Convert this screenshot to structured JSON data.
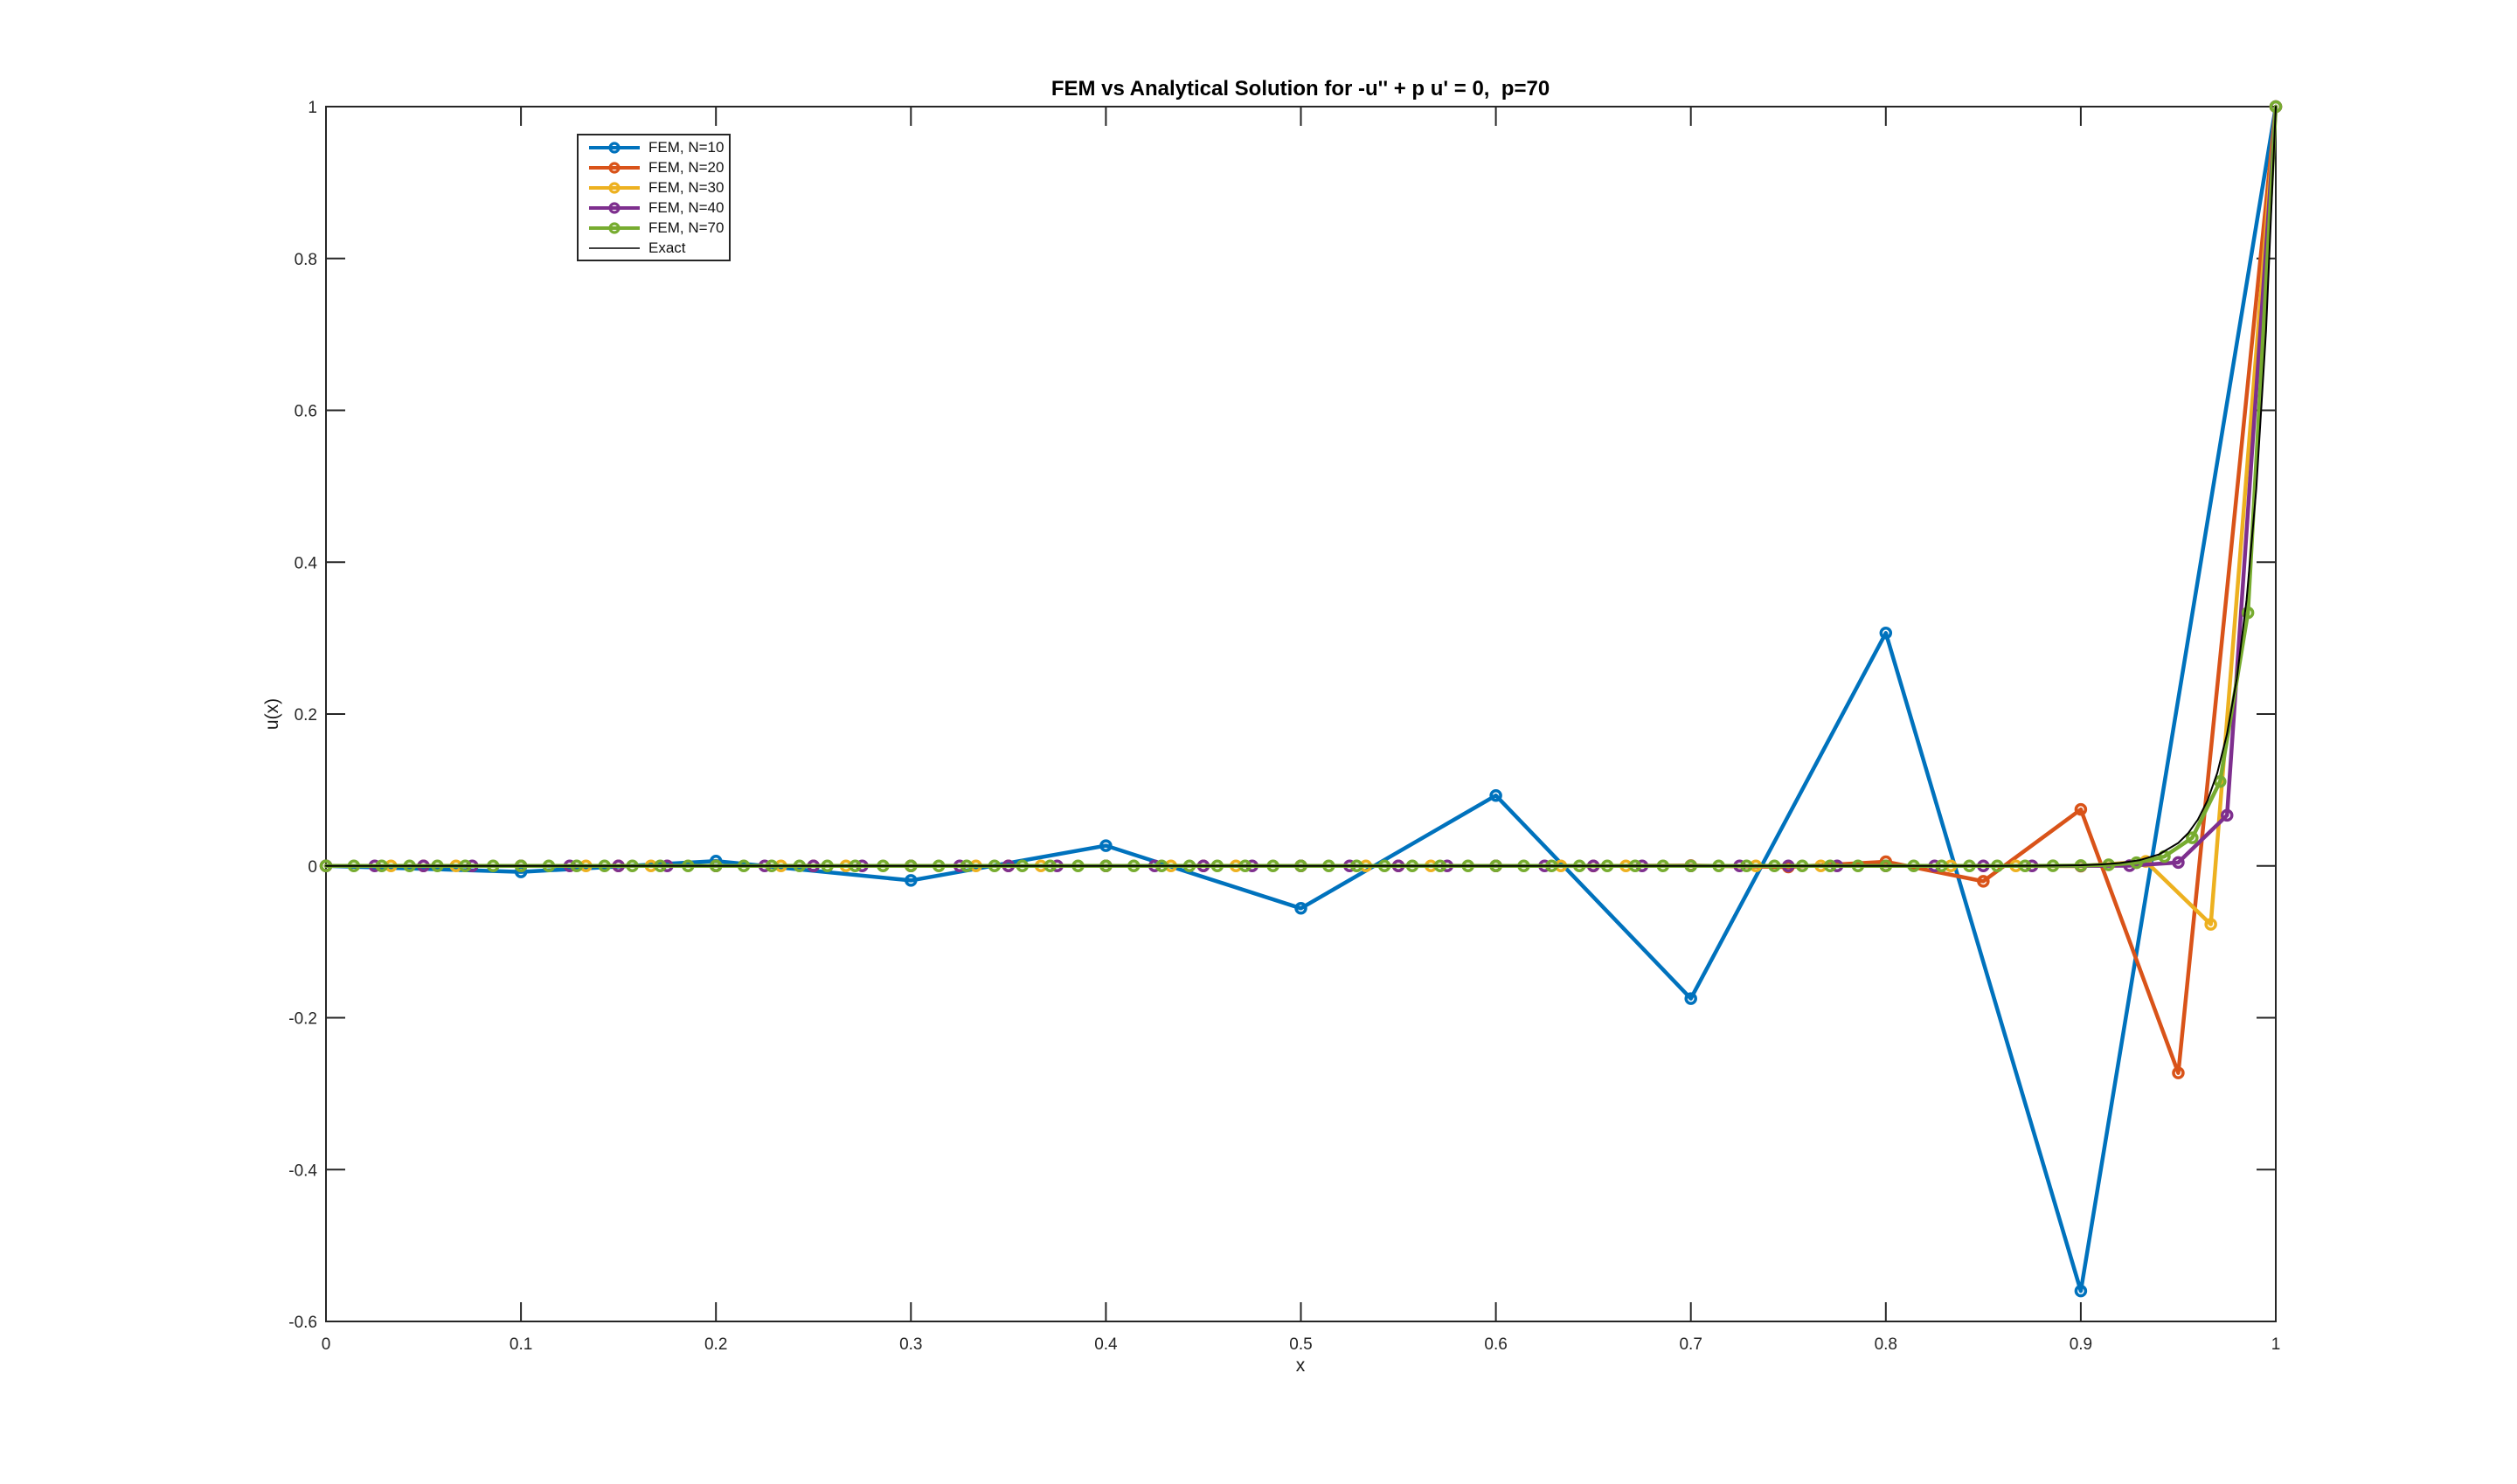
{
  "title": "FEM vs Analytical Solution for -u'' + p u' = 0,  p=70",
  "xlabel": "x",
  "ylabel": "u(x)",
  "chart_data": {
    "type": "line",
    "title": "FEM vs Analytical Solution for -u'' + p u' = 0,  p=70",
    "xlabel": "x",
    "ylabel": "u(x)",
    "xlim": [
      0,
      1
    ],
    "ylim": [
      -0.6,
      1
    ],
    "grid": false,
    "legend_position": "top-left-inside",
    "axis_color": "#262626",
    "background_color": "#ffffff",
    "xticks": [
      0,
      0.1,
      0.2,
      0.3,
      0.4,
      0.5,
      0.6,
      0.7,
      0.8,
      0.9,
      1
    ],
    "xtick_labels": [
      "0",
      "0.1",
      "0.2",
      "0.3",
      "0.4",
      "0.5",
      "0.6",
      "0.7",
      "0.8",
      "0.9",
      "1"
    ],
    "yticks": [
      -0.6,
      -0.4,
      -0.2,
      0,
      0.2,
      0.4,
      0.6,
      0.8,
      1
    ],
    "ytick_labels": [
      "-0.6",
      "-0.4",
      "-0.2",
      "0",
      "0.2",
      "0.4",
      "0.6",
      "0.8",
      "1"
    ],
    "series": [
      {
        "name": "FEM, N=10",
        "color": "#0072BD",
        "marker": "circle",
        "x": [
          0,
          0.1,
          0.2,
          0.3,
          0.4,
          0.5,
          0.6,
          0.7,
          0.8,
          0.9,
          1
        ],
        "values": [
          0,
          -0.007864,
          0.006291,
          -0.019189,
          0.026675,
          -0.05588,
          0.092719,
          -0.174758,
          0.3067,
          -0.559924,
          1
        ]
      },
      {
        "name": "FEM, N=20",
        "color": "#D95319",
        "marker": "circle",
        "x": [
          0,
          0.05,
          0.1,
          0.15,
          0.2,
          0.25,
          0.3,
          0.35,
          0.4,
          0.45,
          0.5,
          0.55,
          0.6,
          0.65,
          0.7,
          0.75,
          0.8,
          0.85,
          0.9,
          0.95,
          1
        ],
        "values": [
          0,
          0,
          0,
          0,
          0,
          0,
          0,
          0,
          0,
          -1e-06,
          2e-06,
          -8e-06,
          3.1e-05,
          -0.000112,
          0.000411,
          -0.001509,
          0.005532,
          -0.020285,
          0.07438,
          -0.272729,
          1
        ]
      },
      {
        "name": "FEM, N=30",
        "color": "#EDB120",
        "marker": "circle",
        "x": [
          0,
          0.033333,
          0.066667,
          0.1,
          0.133333,
          0.166667,
          0.2,
          0.233333,
          0.266667,
          0.3,
          0.333333,
          0.366667,
          0.4,
          0.433333,
          0.466667,
          0.5,
          0.533333,
          0.566667,
          0.6,
          0.633333,
          0.666667,
          0.7,
          0.733333,
          0.766667,
          0.8,
          0.833333,
          0.866667,
          0.9,
          0.933333,
          0.966667,
          1
        ],
        "values": [
          0,
          0,
          0,
          0,
          0,
          0,
          0,
          0,
          0,
          0,
          0,
          0,
          0,
          0,
          0,
          0,
          0,
          0,
          0,
          0,
          0,
          0,
          0,
          0,
          0,
          -3e-06,
          3.5e-05,
          -0.000455,
          0.005917,
          -0.076923,
          1
        ]
      },
      {
        "name": "FEM, N=40",
        "color": "#7E2F8E",
        "marker": "circle",
        "x": [
          0,
          0.025,
          0.05,
          0.075,
          0.1,
          0.125,
          0.15,
          0.175,
          0.2,
          0.225,
          0.25,
          0.275,
          0.3,
          0.325,
          0.35,
          0.375,
          0.4,
          0.425,
          0.45,
          0.475,
          0.5,
          0.525,
          0.55,
          0.575,
          0.6,
          0.625,
          0.65,
          0.675,
          0.7,
          0.725,
          0.75,
          0.775,
          0.8,
          0.825,
          0.85,
          0.875,
          0.9,
          0.925,
          0.95,
          0.975,
          1
        ],
        "values": [
          0,
          0,
          0,
          0,
          0,
          0,
          0,
          0,
          0,
          0,
          0,
          0,
          0,
          0,
          0,
          0,
          0,
          0,
          0,
          0,
          0,
          0,
          0,
          0,
          0,
          0,
          0,
          0,
          0,
          0,
          0,
          0,
          0,
          0,
          0,
          1e-06,
          2e-05,
          0.000296,
          0.004444,
          0.066667,
          1
        ]
      },
      {
        "name": "FEM, N=70",
        "color": "#77AC30",
        "marker": "circle",
        "x": [
          0,
          0.014286,
          0.028571,
          0.042857,
          0.057143,
          0.071429,
          0.085714,
          0.1,
          0.114286,
          0.128571,
          0.142857,
          0.157143,
          0.171429,
          0.185714,
          0.2,
          0.214286,
          0.228571,
          0.242857,
          0.257143,
          0.271429,
          0.285714,
          0.3,
          0.314286,
          0.328571,
          0.342857,
          0.357143,
          0.371429,
          0.385714,
          0.4,
          0.414286,
          0.428571,
          0.442857,
          0.457143,
          0.471429,
          0.485714,
          0.5,
          0.514286,
          0.528571,
          0.542857,
          0.557143,
          0.571429,
          0.585714,
          0.6,
          0.614286,
          0.628571,
          0.642857,
          0.657143,
          0.671429,
          0.685714,
          0.7,
          0.714286,
          0.728571,
          0.742857,
          0.757143,
          0.771429,
          0.785714,
          0.8,
          0.814286,
          0.828571,
          0.842857,
          0.857143,
          0.871429,
          0.885714,
          0.9,
          0.914286,
          0.928571,
          0.942857,
          0.957143,
          0.971429,
          0.985714,
          1
        ],
        "values": [
          0,
          0,
          0,
          0,
          0,
          0,
          0,
          0,
          0,
          0,
          0,
          0,
          0,
          0,
          0,
          0,
          0,
          0,
          0,
          0,
          0,
          0,
          0,
          0,
          0,
          0,
          0,
          0,
          0,
          0,
          0,
          0,
          0,
          0,
          0,
          0,
          0,
          0,
          0,
          0,
          0,
          0,
          0,
          0,
          0,
          0,
          0,
          0,
          0,
          0,
          0,
          0,
          0,
          0,
          0,
          0,
          0,
          1e-06,
          2e-06,
          6e-06,
          1.7e-05,
          5.1e-05,
          0.000152,
          0.000457,
          0.001372,
          0.004115,
          0.012346,
          0.037037,
          0.111111,
          0.333333,
          1
        ]
      },
      {
        "name": "Exact",
        "color": "#000000",
        "marker": "none",
        "x": [
          0,
          0.1,
          0.2,
          0.3,
          0.4,
          0.5,
          0.6,
          0.7,
          0.8,
          0.85,
          0.875,
          0.9,
          0.91,
          0.92,
          0.93,
          0.94,
          0.95,
          0.955,
          0.96,
          0.965,
          0.97,
          0.975,
          0.98,
          0.985,
          0.99,
          0.995,
          1
        ],
        "values": [
          0,
          0,
          0,
          0,
          0,
          0,
          0,
          0,
          1e-06,
          2.8e-05,
          0.000158,
          0.000912,
          0.001836,
          0.003698,
          0.007447,
          0.014996,
          0.030197,
          0.042852,
          0.06081,
          0.086294,
          0.122456,
          0.173774,
          0.246597,
          0.349938,
          0.496585,
          0.704688,
          1
        ]
      }
    ]
  }
}
